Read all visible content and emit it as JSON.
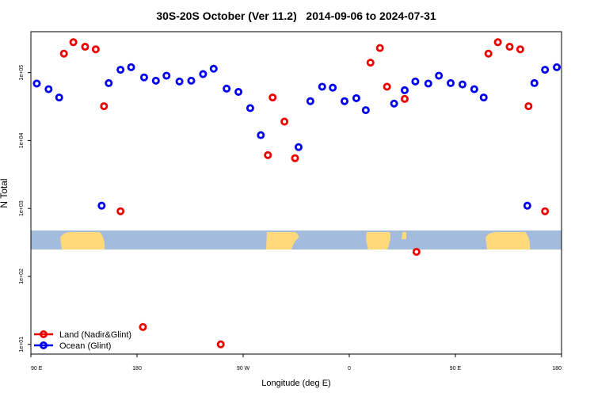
{
  "chart_data": {
    "type": "scatter",
    "title": "30S-20S October (Ver 11.2)   2014-09-06 to 2024-07-31",
    "y_label": "N Total",
    "x_label": "Longitude (deg E)",
    "log_y": true,
    "legend": "bottom-left",
    "xlim": [
      90,
      540
    ],
    "xticks": [
      {
        "value": 90,
        "label": "90 E"
      },
      180,
      {
        "value": 270,
        "label": "90 W"
      },
      {
        "value": 360,
        "label": "0"
      },
      {
        "value": 450,
        "label": "90 E"
      },
      {
        "value": 540,
        "label": "180"
      }
    ],
    "ylim": [
      7.2,
      400000
    ],
    "yticks": [
      {
        "value": 10,
        "label": "1e+01"
      },
      {
        "value": 100,
        "label": "1e+02"
      },
      {
        "value": 1000,
        "label": "1e+03"
      },
      {
        "value": 10000,
        "label": "1e+04"
      },
      {
        "value": 100000,
        "label": "1e+05"
      }
    ],
    "series": [
      {
        "name": "Land (Nadir&Glint)",
        "color": "#ee0000",
        "x": [
          118,
          126,
          136,
          145,
          152,
          166,
          185,
          251,
          291,
          295,
          305,
          314,
          378,
          386,
          392,
          407,
          417,
          478,
          486,
          496,
          505,
          512,
          526
        ],
        "values": [
          190000,
          280000,
          240000,
          220000,
          32000,
          910,
          18,
          10,
          6100,
          43000,
          19000,
          5500,
          140000,
          230000,
          62000,
          41000,
          230,
          190000,
          280000,
          240000,
          220000,
          32000,
          910
        ]
      },
      {
        "name": "Ocean (Glint)",
        "color": "#0000ee",
        "x": [
          95,
          105,
          114,
          150,
          156,
          166,
          175,
          186,
          196,
          205,
          216,
          226,
          236,
          245,
          256,
          266,
          276,
          285,
          317,
          327,
          337,
          346,
          356,
          366,
          374,
          398,
          407,
          416,
          427,
          436,
          446,
          456,
          466,
          474,
          511,
          517,
          526,
          536
        ],
        "values": [
          69000,
          57000,
          43000,
          1100,
          70000,
          110000,
          120000,
          85000,
          76000,
          90000,
          74000,
          76000,
          95000,
          114000,
          58000,
          52000,
          30000,
          12000,
          8000,
          38000,
          62000,
          60000,
          38000,
          42000,
          28000,
          35000,
          55000,
          74000,
          69000,
          90000,
          70000,
          67000,
          57000,
          43000,
          1100,
          70000,
          110000,
          120000
        ]
      }
    ]
  }
}
